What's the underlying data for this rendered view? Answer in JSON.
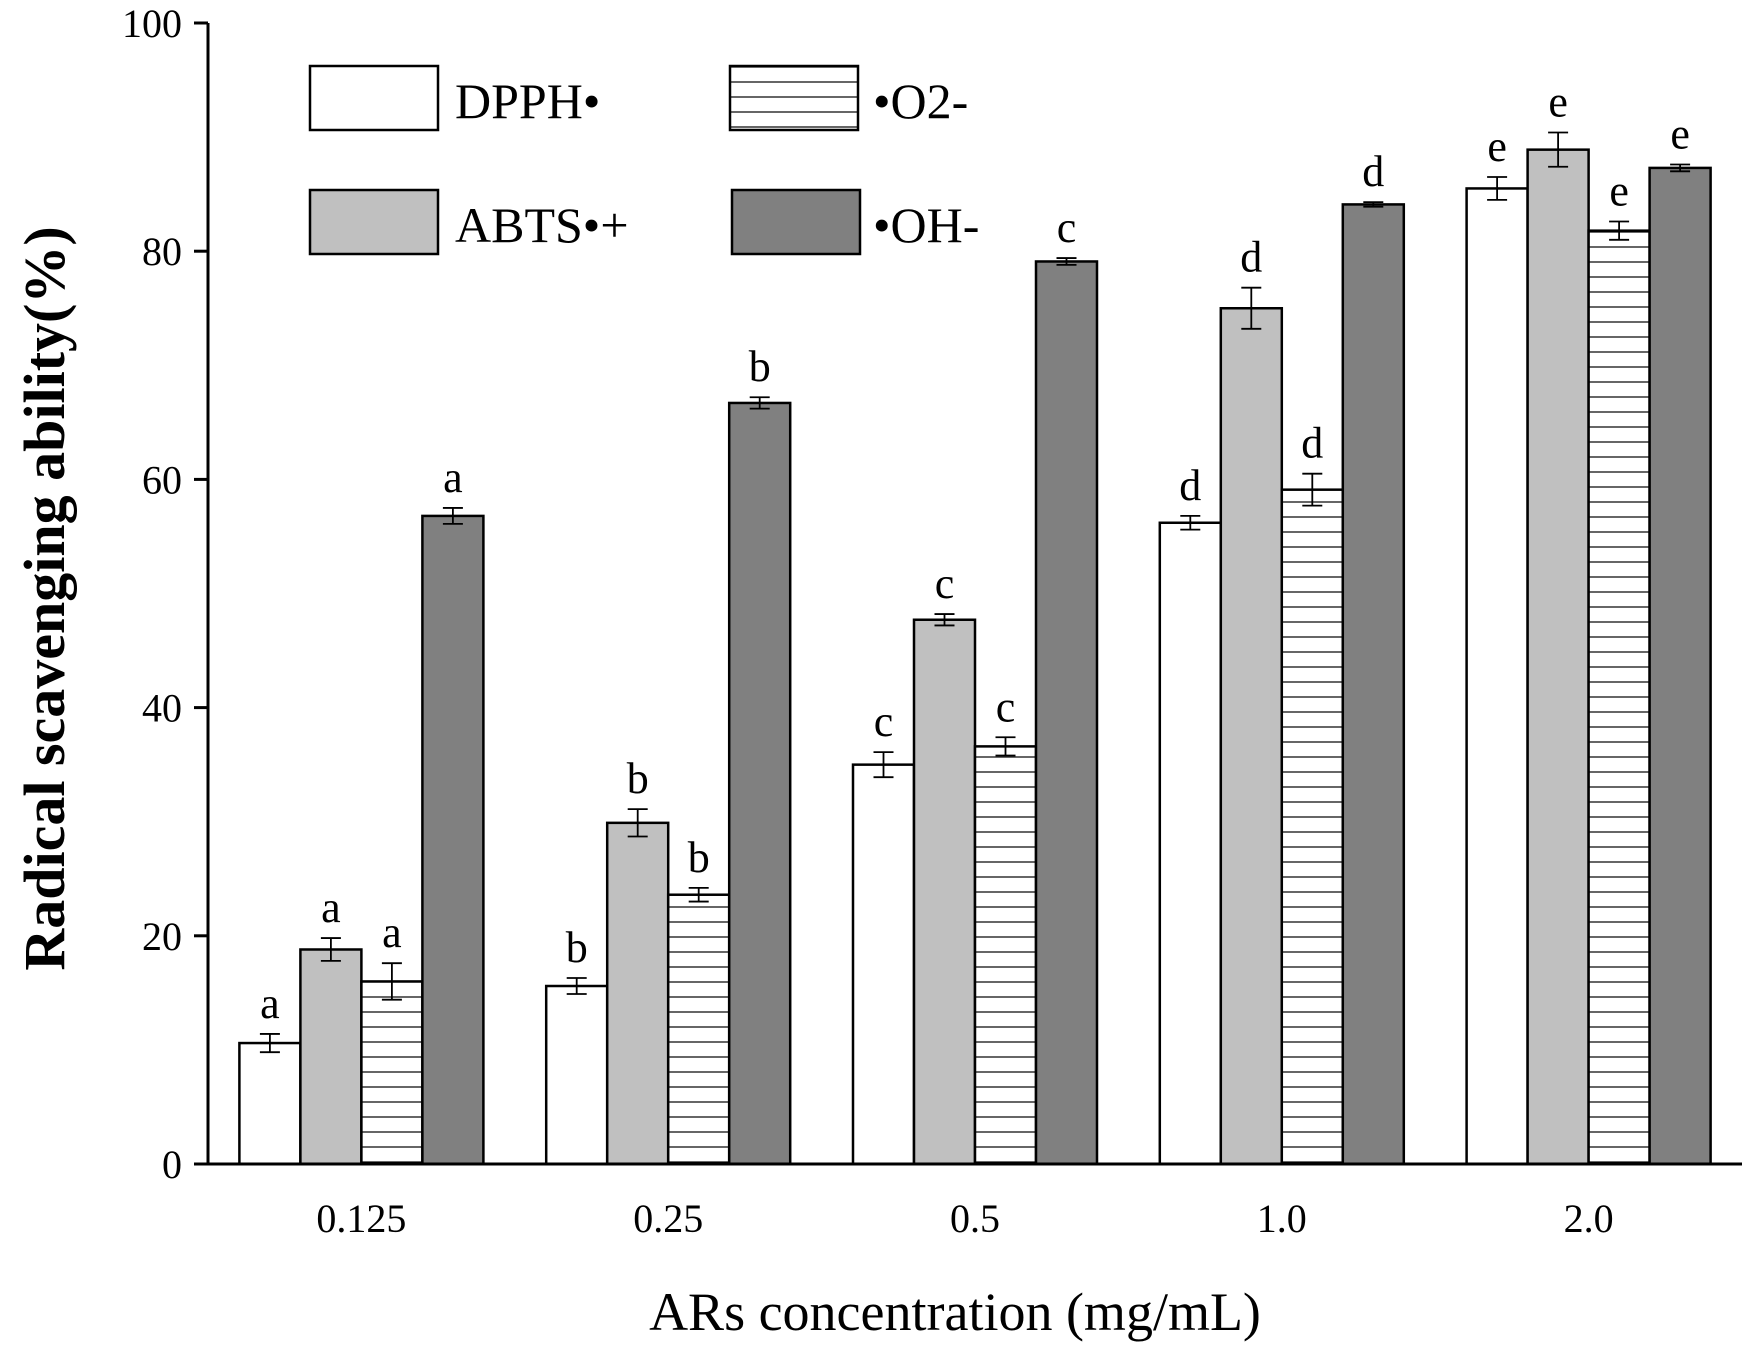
{
  "chart_data": {
    "type": "bar",
    "xlabel": "ARs concentration (mg/mL)",
    "ylabel": "Radical scavenging ability(%)",
    "ylim": [
      0,
      100
    ],
    "yticks": [
      0,
      20,
      40,
      60,
      80,
      100
    ],
    "categories": [
      "0.125",
      "0.25",
      "0.5",
      "1.0",
      "2.0"
    ],
    "legend_position": "top-left",
    "series": [
      {
        "name": "DPPH•",
        "style": "white",
        "values": [
          10.6,
          15.6,
          35.0,
          56.2,
          85.5
        ],
        "errors": [
          0.8,
          0.7,
          1.1,
          0.6,
          1.0
        ],
        "letters": [
          "a",
          "b",
          "c",
          "d",
          "e"
        ]
      },
      {
        "name": "ABTS•+",
        "style": "light-gray",
        "values": [
          18.8,
          29.9,
          47.7,
          75.0,
          88.9
        ],
        "errors": [
          1.0,
          1.2,
          0.5,
          1.8,
          1.5
        ],
        "letters": [
          "a",
          "b",
          "c",
          "d",
          "e"
        ]
      },
      {
        "name": "•O2-",
        "style": "horizontal-hatch",
        "values": [
          16.0,
          23.6,
          36.6,
          59.1,
          81.8
        ],
        "errors": [
          1.6,
          0.6,
          0.8,
          1.4,
          0.8
        ],
        "letters": [
          "a",
          "b",
          "c",
          "d",
          "e"
        ]
      },
      {
        "name": "•OH-",
        "style": "dark-gray",
        "values": [
          56.8,
          66.7,
          79.1,
          84.1,
          87.3
        ],
        "errors": [
          0.7,
          0.5,
          0.3,
          0.2,
          0.3
        ],
        "letters": [
          "a",
          "b",
          "c",
          "d",
          "e"
        ]
      }
    ],
    "colors": {
      "white": "#ffffff",
      "light-gray": "#c0c0c0",
      "horizontal-hatch": "#ffffff",
      "dark-gray": "#808080",
      "stroke": "#000000"
    }
  }
}
